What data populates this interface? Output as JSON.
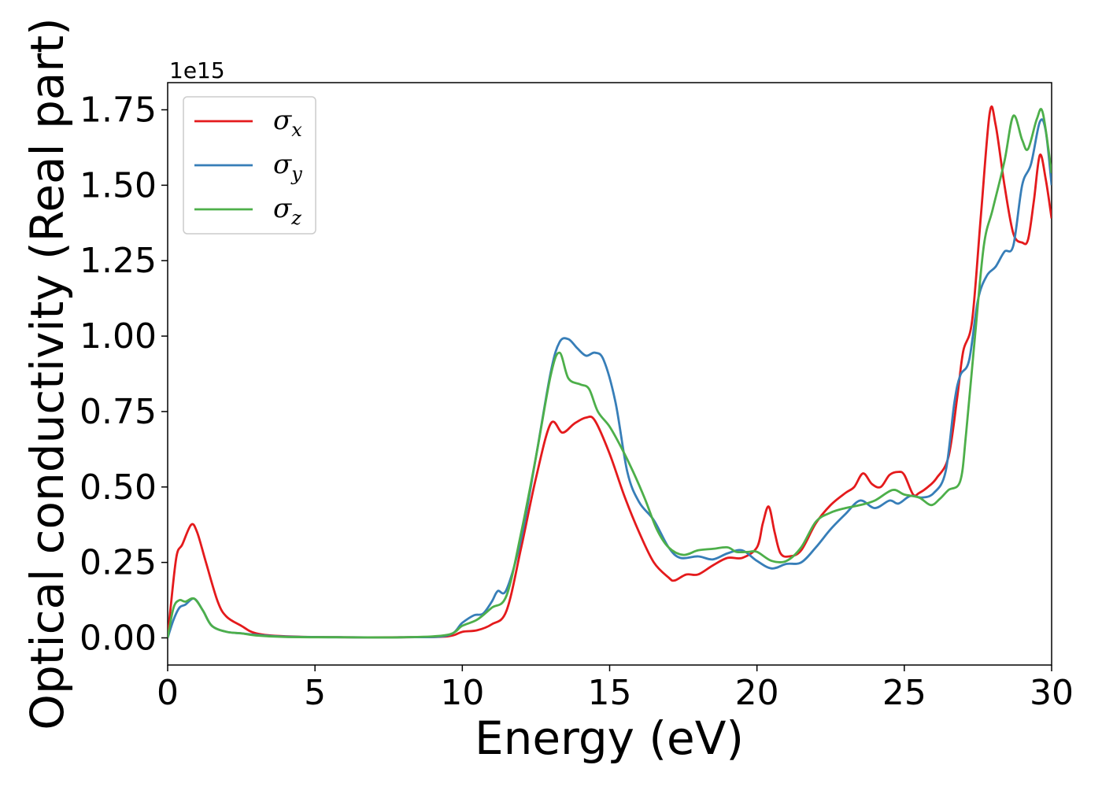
{
  "chart_data": {
    "type": "line",
    "xlabel": "Energy (eV)",
    "ylabel": "Optical conductivity (Real part)",
    "y_offset_label": "1e15",
    "xlim": [
      0,
      30
    ],
    "ylim": [
      -0.09,
      1.84
    ],
    "x_ticks": [
      0,
      5,
      10,
      15,
      20,
      25,
      30
    ],
    "x_tick_labels": [
      "0",
      "5",
      "10",
      "15",
      "20",
      "25",
      "30"
    ],
    "y_ticks": [
      0.0,
      0.25,
      0.5,
      0.75,
      1.0,
      1.25,
      1.5,
      1.75
    ],
    "y_tick_labels": [
      "0.00",
      "0.25",
      "0.50",
      "0.75",
      "1.00",
      "1.25",
      "1.50",
      "1.75"
    ],
    "grid": false,
    "legend_position": "top-left",
    "series": [
      {
        "name": "σ",
        "subscript": "x",
        "color": "#e41a1c",
        "points": [
          [
            0,
            0.0
          ],
          [
            0.1,
            0.1
          ],
          [
            0.3,
            0.27
          ],
          [
            0.5,
            0.31
          ],
          [
            0.8,
            0.375
          ],
          [
            1.0,
            0.35
          ],
          [
            1.3,
            0.25
          ],
          [
            1.7,
            0.12
          ],
          [
            2.0,
            0.07
          ],
          [
            2.5,
            0.04
          ],
          [
            3.0,
            0.015
          ],
          [
            4.0,
            0.005
          ],
          [
            6.0,
            0.002
          ],
          [
            8.0,
            0.002
          ],
          [
            9.5,
            0.005
          ],
          [
            10.0,
            0.02
          ],
          [
            10.5,
            0.025
          ],
          [
            11.0,
            0.045
          ],
          [
            11.5,
            0.09
          ],
          [
            12.0,
            0.3
          ],
          [
            12.5,
            0.53
          ],
          [
            13.0,
            0.71
          ],
          [
            13.4,
            0.68
          ],
          [
            13.8,
            0.71
          ],
          [
            14.2,
            0.73
          ],
          [
            14.5,
            0.72
          ],
          [
            15.0,
            0.61
          ],
          [
            15.5,
            0.47
          ],
          [
            16.0,
            0.35
          ],
          [
            16.5,
            0.25
          ],
          [
            17.0,
            0.2
          ],
          [
            17.2,
            0.19
          ],
          [
            17.6,
            0.21
          ],
          [
            18.0,
            0.21
          ],
          [
            18.5,
            0.24
          ],
          [
            19.0,
            0.265
          ],
          [
            19.5,
            0.265
          ],
          [
            20.0,
            0.3
          ],
          [
            20.2,
            0.38
          ],
          [
            20.4,
            0.435
          ],
          [
            20.6,
            0.35
          ],
          [
            20.8,
            0.28
          ],
          [
            21.1,
            0.27
          ],
          [
            21.5,
            0.29
          ],
          [
            22.0,
            0.38
          ],
          [
            22.5,
            0.44
          ],
          [
            23.0,
            0.48
          ],
          [
            23.3,
            0.5
          ],
          [
            23.6,
            0.545
          ],
          [
            23.9,
            0.51
          ],
          [
            24.2,
            0.5
          ],
          [
            24.5,
            0.54
          ],
          [
            24.8,
            0.55
          ],
          [
            25.0,
            0.54
          ],
          [
            25.3,
            0.475
          ],
          [
            25.5,
            0.48
          ],
          [
            25.8,
            0.5
          ],
          [
            26.1,
            0.53
          ],
          [
            26.5,
            0.6
          ],
          [
            26.8,
            0.8
          ],
          [
            27.0,
            0.95
          ],
          [
            27.3,
            1.05
          ],
          [
            27.6,
            1.4
          ],
          [
            27.9,
            1.74
          ],
          [
            28.1,
            1.7
          ],
          [
            28.4,
            1.5
          ],
          [
            28.7,
            1.34
          ],
          [
            29.0,
            1.31
          ],
          [
            29.2,
            1.32
          ],
          [
            29.4,
            1.45
          ],
          [
            29.6,
            1.6
          ],
          [
            29.8,
            1.52
          ],
          [
            30.0,
            1.39
          ]
        ]
      },
      {
        "name": "σ",
        "subscript": "y",
        "color": "#377eb8",
        "points": [
          [
            0,
            0.0
          ],
          [
            0.2,
            0.06
          ],
          [
            0.4,
            0.1
          ],
          [
            0.6,
            0.11
          ],
          [
            0.9,
            0.13
          ],
          [
            1.2,
            0.09
          ],
          [
            1.5,
            0.04
          ],
          [
            2.0,
            0.02
          ],
          [
            2.5,
            0.015
          ],
          [
            3.0,
            0.01
          ],
          [
            4.0,
            0.004
          ],
          [
            6.0,
            0.002
          ],
          [
            8.0,
            0.002
          ],
          [
            9.5,
            0.008
          ],
          [
            10.0,
            0.05
          ],
          [
            10.4,
            0.075
          ],
          [
            10.7,
            0.08
          ],
          [
            11.0,
            0.12
          ],
          [
            11.2,
            0.155
          ],
          [
            11.5,
            0.16
          ],
          [
            12.0,
            0.33
          ],
          [
            12.5,
            0.6
          ],
          [
            13.0,
            0.88
          ],
          [
            13.3,
            0.98
          ],
          [
            13.6,
            0.99
          ],
          [
            13.9,
            0.96
          ],
          [
            14.2,
            0.935
          ],
          [
            14.5,
            0.945
          ],
          [
            14.8,
            0.92
          ],
          [
            15.2,
            0.78
          ],
          [
            15.6,
            0.55
          ],
          [
            16.0,
            0.45
          ],
          [
            16.5,
            0.39
          ],
          [
            17.0,
            0.3
          ],
          [
            17.4,
            0.265
          ],
          [
            18.0,
            0.27
          ],
          [
            18.5,
            0.26
          ],
          [
            19.0,
            0.28
          ],
          [
            19.5,
            0.29
          ],
          [
            20.0,
            0.255
          ],
          [
            20.5,
            0.23
          ],
          [
            21.0,
            0.245
          ],
          [
            21.5,
            0.25
          ],
          [
            22.0,
            0.3
          ],
          [
            22.5,
            0.36
          ],
          [
            23.0,
            0.41
          ],
          [
            23.5,
            0.455
          ],
          [
            24.0,
            0.43
          ],
          [
            24.5,
            0.455
          ],
          [
            24.8,
            0.445
          ],
          [
            25.2,
            0.47
          ],
          [
            25.6,
            0.465
          ],
          [
            26.0,
            0.48
          ],
          [
            26.4,
            0.55
          ],
          [
            26.7,
            0.78
          ],
          [
            26.9,
            0.87
          ],
          [
            27.2,
            0.92
          ],
          [
            27.5,
            1.12
          ],
          [
            27.8,
            1.2
          ],
          [
            28.1,
            1.23
          ],
          [
            28.4,
            1.28
          ],
          [
            28.7,
            1.3
          ],
          [
            29.0,
            1.5
          ],
          [
            29.3,
            1.57
          ],
          [
            29.6,
            1.71
          ],
          [
            29.8,
            1.68
          ],
          [
            30.0,
            1.5
          ]
        ]
      },
      {
        "name": "σ",
        "subscript": "z",
        "color": "#4daf4a",
        "points": [
          [
            0,
            0.0
          ],
          [
            0.2,
            0.1
          ],
          [
            0.4,
            0.125
          ],
          [
            0.6,
            0.12
          ],
          [
            0.9,
            0.13
          ],
          [
            1.2,
            0.09
          ],
          [
            1.5,
            0.04
          ],
          [
            2.0,
            0.02
          ],
          [
            2.5,
            0.015
          ],
          [
            3.0,
            0.008
          ],
          [
            4.0,
            0.003
          ],
          [
            6.0,
            0.002
          ],
          [
            8.0,
            0.002
          ],
          [
            9.5,
            0.01
          ],
          [
            10.0,
            0.04
          ],
          [
            10.5,
            0.06
          ],
          [
            11.0,
            0.1
          ],
          [
            11.5,
            0.14
          ],
          [
            12.0,
            0.35
          ],
          [
            12.5,
            0.6
          ],
          [
            13.0,
            0.87
          ],
          [
            13.3,
            0.945
          ],
          [
            13.6,
            0.86
          ],
          [
            14.0,
            0.84
          ],
          [
            14.3,
            0.825
          ],
          [
            14.6,
            0.75
          ],
          [
            15.0,
            0.7
          ],
          [
            15.4,
            0.63
          ],
          [
            15.8,
            0.55
          ],
          [
            16.2,
            0.46
          ],
          [
            16.6,
            0.36
          ],
          [
            17.0,
            0.3
          ],
          [
            17.5,
            0.275
          ],
          [
            18.0,
            0.29
          ],
          [
            18.5,
            0.295
          ],
          [
            19.0,
            0.3
          ],
          [
            19.3,
            0.285
          ],
          [
            19.7,
            0.285
          ],
          [
            20.0,
            0.285
          ],
          [
            20.5,
            0.255
          ],
          [
            21.0,
            0.255
          ],
          [
            21.5,
            0.3
          ],
          [
            22.0,
            0.385
          ],
          [
            22.5,
            0.415
          ],
          [
            23.0,
            0.43
          ],
          [
            23.5,
            0.44
          ],
          [
            24.0,
            0.455
          ],
          [
            24.6,
            0.49
          ],
          [
            25.0,
            0.475
          ],
          [
            25.5,
            0.465
          ],
          [
            25.9,
            0.44
          ],
          [
            26.2,
            0.46
          ],
          [
            26.5,
            0.49
          ],
          [
            26.9,
            0.52
          ],
          [
            27.1,
            0.68
          ],
          [
            27.4,
            1.0
          ],
          [
            27.7,
            1.3
          ],
          [
            28.0,
            1.42
          ],
          [
            28.4,
            1.58
          ],
          [
            28.7,
            1.73
          ],
          [
            29.0,
            1.65
          ],
          [
            29.2,
            1.62
          ],
          [
            29.5,
            1.72
          ],
          [
            29.7,
            1.74
          ],
          [
            30.0,
            1.54
          ]
        ]
      }
    ]
  }
}
